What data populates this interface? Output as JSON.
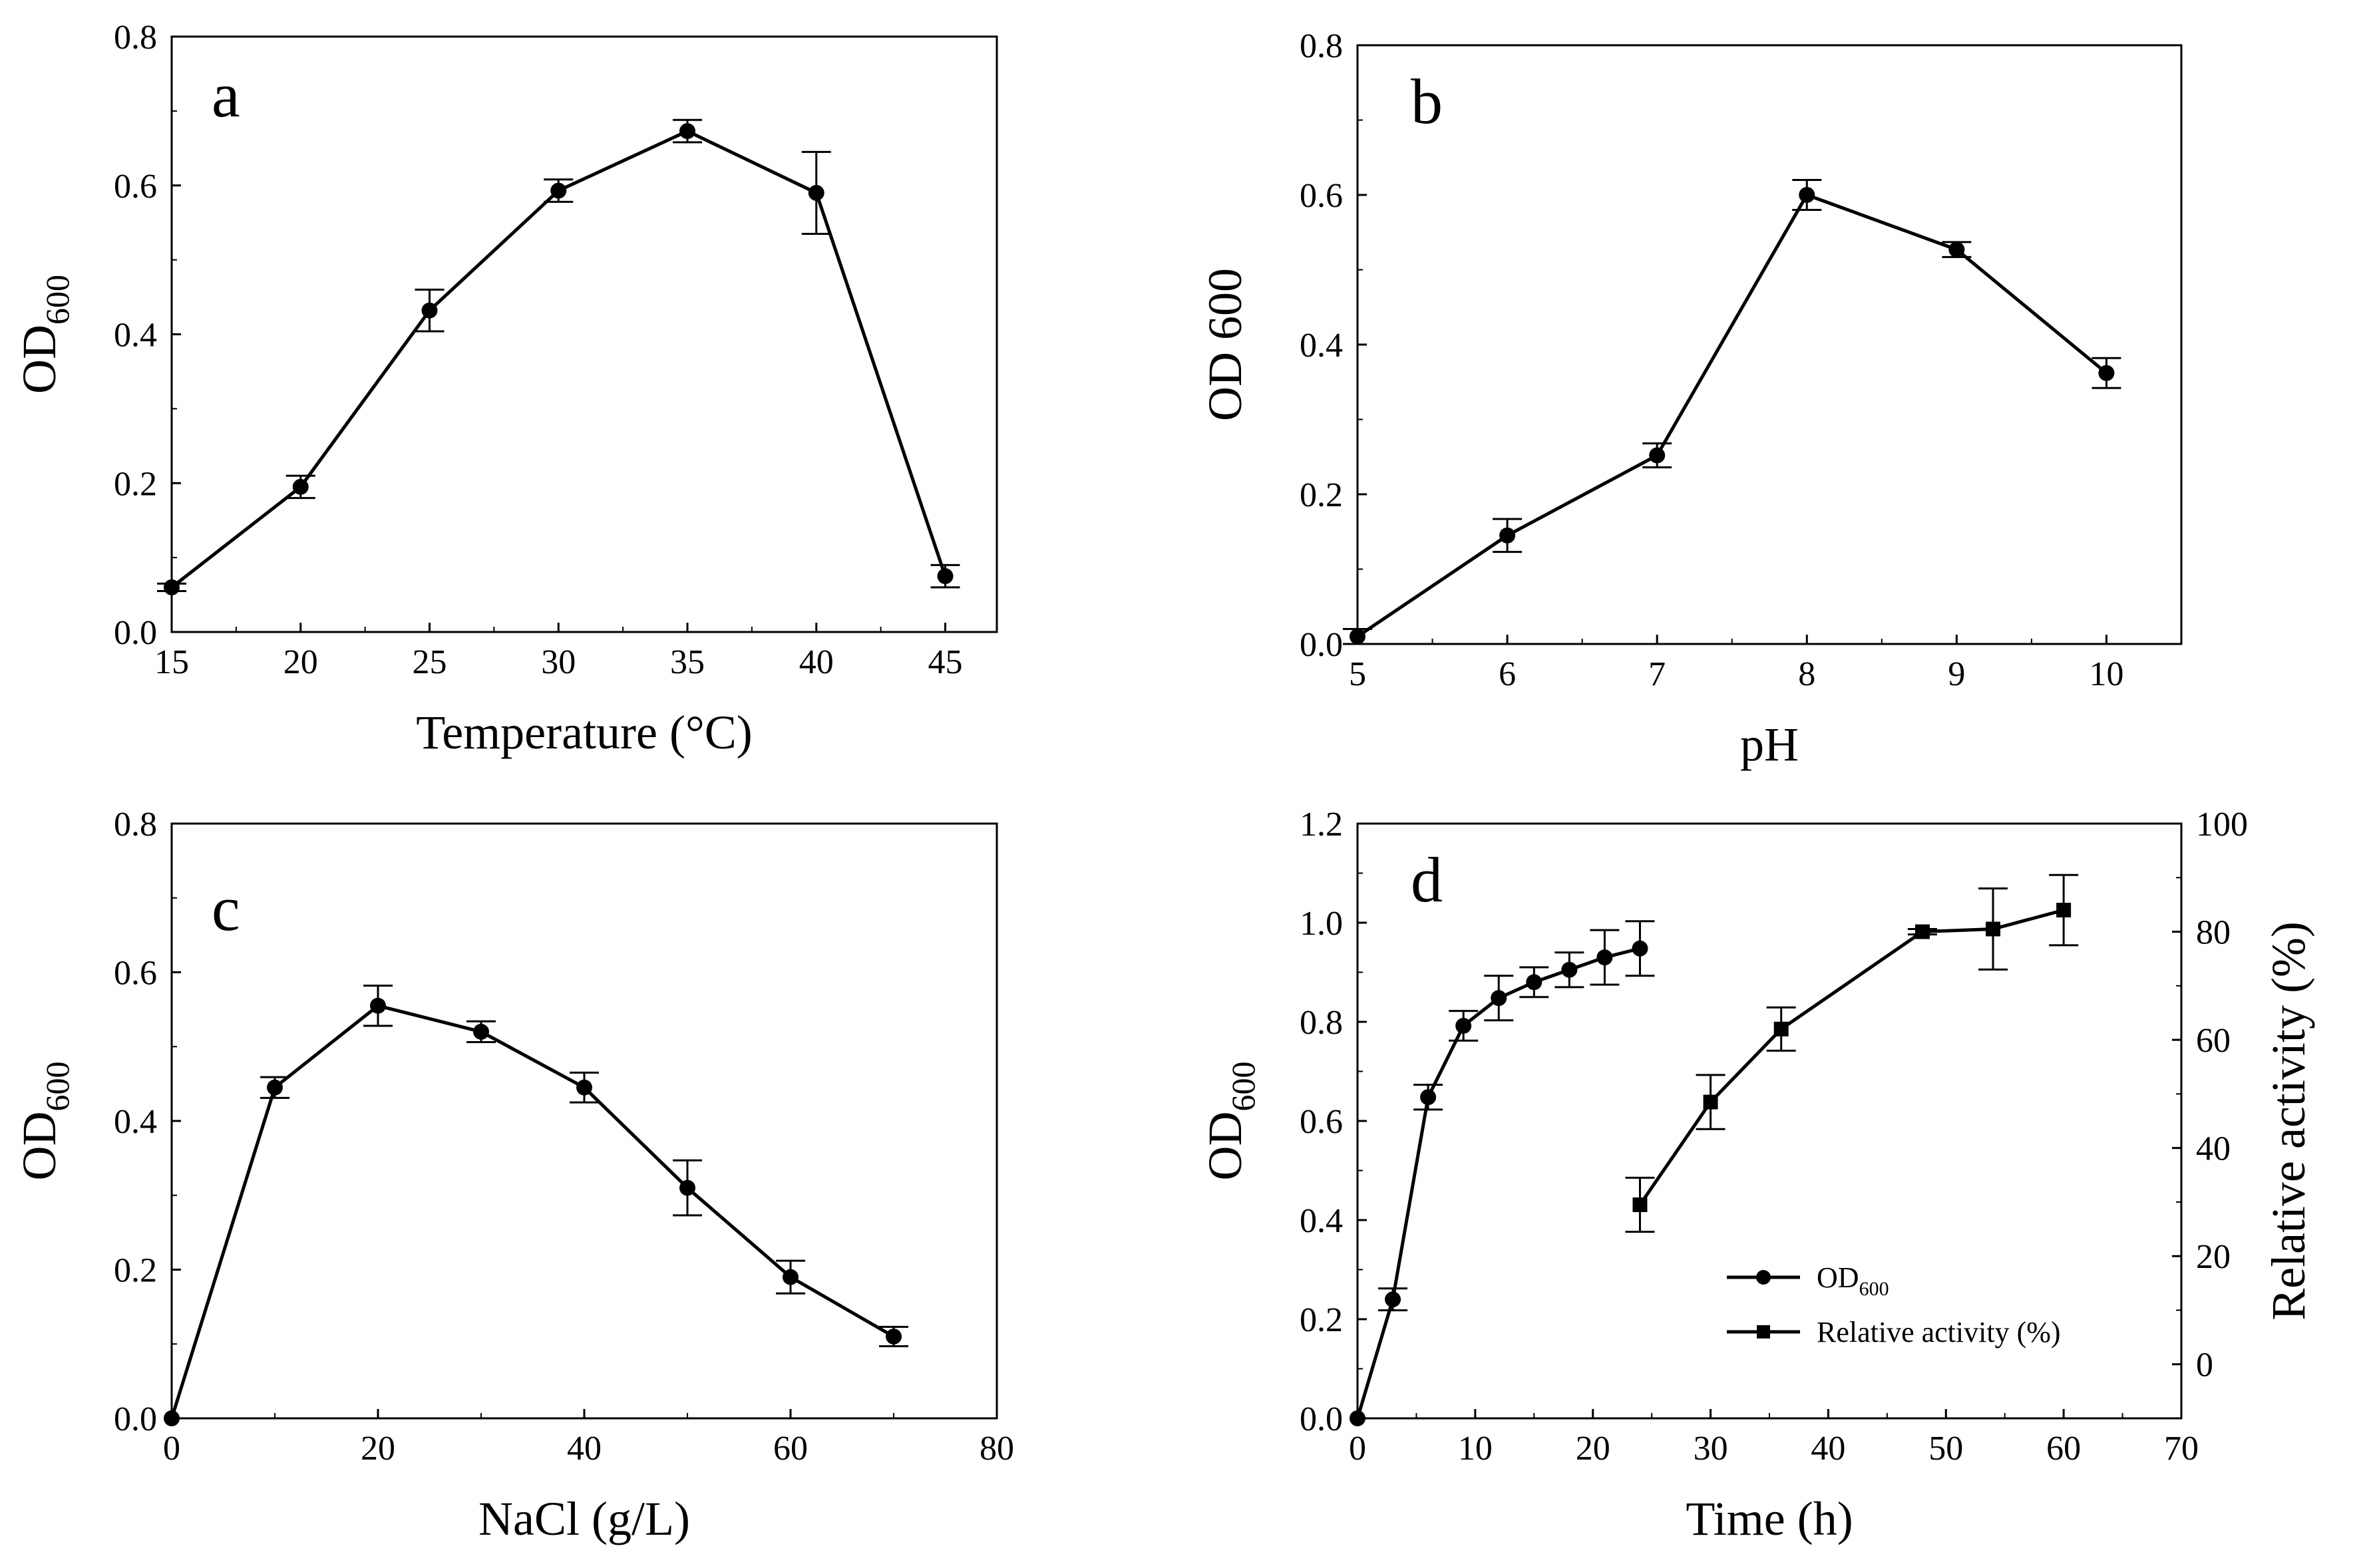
{
  "chart_data": [
    {
      "type": "line",
      "panel": "a",
      "xlabel": "Temperature (°C)",
      "ylabel": {
        "main": "OD",
        "sub": "600"
      },
      "xlim": [
        15,
        47
      ],
      "ylim": [
        0.0,
        0.8
      ],
      "xticks": [
        15,
        20,
        25,
        30,
        35,
        40,
        45
      ],
      "xtick_labels": [
        "15",
        "20",
        "25",
        "30",
        "35",
        "40",
        "45"
      ],
      "yticks": [
        0.0,
        0.2,
        0.4,
        0.6,
        0.8
      ],
      "ytick_labels": [
        "0.0",
        "0.2",
        "0.4",
        "0.6",
        "0.8"
      ],
      "series": [
        {
          "name": "OD600",
          "marker": "circle",
          "x": [
            15,
            20,
            25,
            30,
            35,
            40,
            45
          ],
          "y": [
            0.06,
            0.195,
            0.432,
            0.593,
            0.673,
            0.59,
            0.075
          ],
          "err": [
            0.005,
            0.015,
            0.028,
            0.015,
            0.015,
            0.055,
            0.015
          ]
        }
      ]
    },
    {
      "type": "line",
      "panel": "b",
      "xlabel": "pH",
      "ylabel": {
        "main": "OD 600",
        "sub": ""
      },
      "xlim": [
        5,
        10.5
      ],
      "ylim": [
        0.0,
        0.8
      ],
      "xticks": [
        5,
        6,
        7,
        8,
        9,
        10
      ],
      "xtick_labels": [
        "5",
        "6",
        "7",
        "8",
        "9",
        "10"
      ],
      "yticks": [
        0.0,
        0.2,
        0.4,
        0.6,
        0.8
      ],
      "ytick_labels": [
        "0.0",
        "0.2",
        "0.4",
        "0.6",
        "0.8"
      ],
      "series": [
        {
          "name": "OD 600",
          "marker": "circle",
          "x": [
            5,
            6,
            7,
            8,
            9,
            10
          ],
          "y": [
            0.01,
            0.145,
            0.252,
            0.6,
            0.527,
            0.362
          ],
          "err": [
            0.01,
            0.022,
            0.016,
            0.02,
            0.01,
            0.02
          ]
        }
      ]
    },
    {
      "type": "line",
      "panel": "c",
      "xlabel": "NaCl (g/L)",
      "ylabel": {
        "main": "OD",
        "sub": "600"
      },
      "xlim": [
        0,
        80
      ],
      "ylim": [
        0.0,
        0.8
      ],
      "xticks": [
        0,
        20,
        40,
        60,
        80
      ],
      "xtick_labels": [
        "0",
        "20",
        "40",
        "60",
        "80"
      ],
      "yticks": [
        0.0,
        0.2,
        0.4,
        0.6,
        0.8
      ],
      "ytick_labels": [
        "0.0",
        "0.2",
        "0.4",
        "0.6",
        "0.8"
      ],
      "series": [
        {
          "name": "OD600",
          "marker": "circle",
          "x": [
            0,
            10,
            20,
            30,
            40,
            50,
            60,
            70
          ],
          "y": [
            0.0,
            0.445,
            0.555,
            0.52,
            0.445,
            0.31,
            0.19,
            0.11
          ],
          "err": [
            0.0,
            0.014,
            0.027,
            0.014,
            0.02,
            0.037,
            0.022,
            0.013
          ]
        }
      ]
    },
    {
      "type": "line",
      "panel": "d",
      "xlabel": "Time (h)",
      "ylabel": {
        "main": "OD",
        "sub": "600"
      },
      "ylabel_right": "Relative activity (%)",
      "xlim": [
        0,
        70
      ],
      "ylim": [
        0.0,
        1.2
      ],
      "ylim_right": [
        -10,
        100
      ],
      "xticks": [
        0,
        10,
        20,
        30,
        40,
        50,
        60,
        70
      ],
      "xtick_labels": [
        "0",
        "10",
        "20",
        "30",
        "40",
        "50",
        "60",
        "70"
      ],
      "yticks": [
        0.0,
        0.2,
        0.4,
        0.6,
        0.8,
        1.0,
        1.2
      ],
      "ytick_labels": [
        "0.0",
        "0.2",
        "0.4",
        "0.6",
        "0.8",
        "1.0",
        "1.2"
      ],
      "yticks_right": [
        0,
        20,
        40,
        60,
        80,
        100
      ],
      "ytick_labels_right": [
        "0",
        "20",
        "40",
        "60",
        "80",
        "100"
      ],
      "legend": {
        "position": "bottom-right",
        "entries": [
          {
            "main": "OD",
            "sub": "600",
            "marker": "circle"
          },
          {
            "main": "Relative activity (%)",
            "sub": "",
            "marker": "square"
          }
        ]
      },
      "series": [
        {
          "name": "OD600",
          "axis": "left",
          "marker": "circle",
          "x": [
            0,
            3,
            6,
            9,
            12,
            15,
            18,
            21,
            24
          ],
          "y": [
            0.0,
            0.24,
            0.648,
            0.792,
            0.848,
            0.88,
            0.905,
            0.93,
            0.948
          ],
          "err": [
            0.0,
            0.022,
            0.025,
            0.03,
            0.045,
            0.03,
            0.035,
            0.055,
            0.055
          ]
        },
        {
          "name": "Relative activity (%)",
          "axis": "right",
          "marker": "square",
          "x": [
            24,
            30,
            36,
            48,
            54,
            60
          ],
          "y": [
            29.5,
            48.5,
            62,
            80,
            80.5,
            84
          ],
          "err": [
            5,
            5,
            4,
            0.5,
            7.5,
            6.5
          ]
        }
      ]
    }
  ]
}
